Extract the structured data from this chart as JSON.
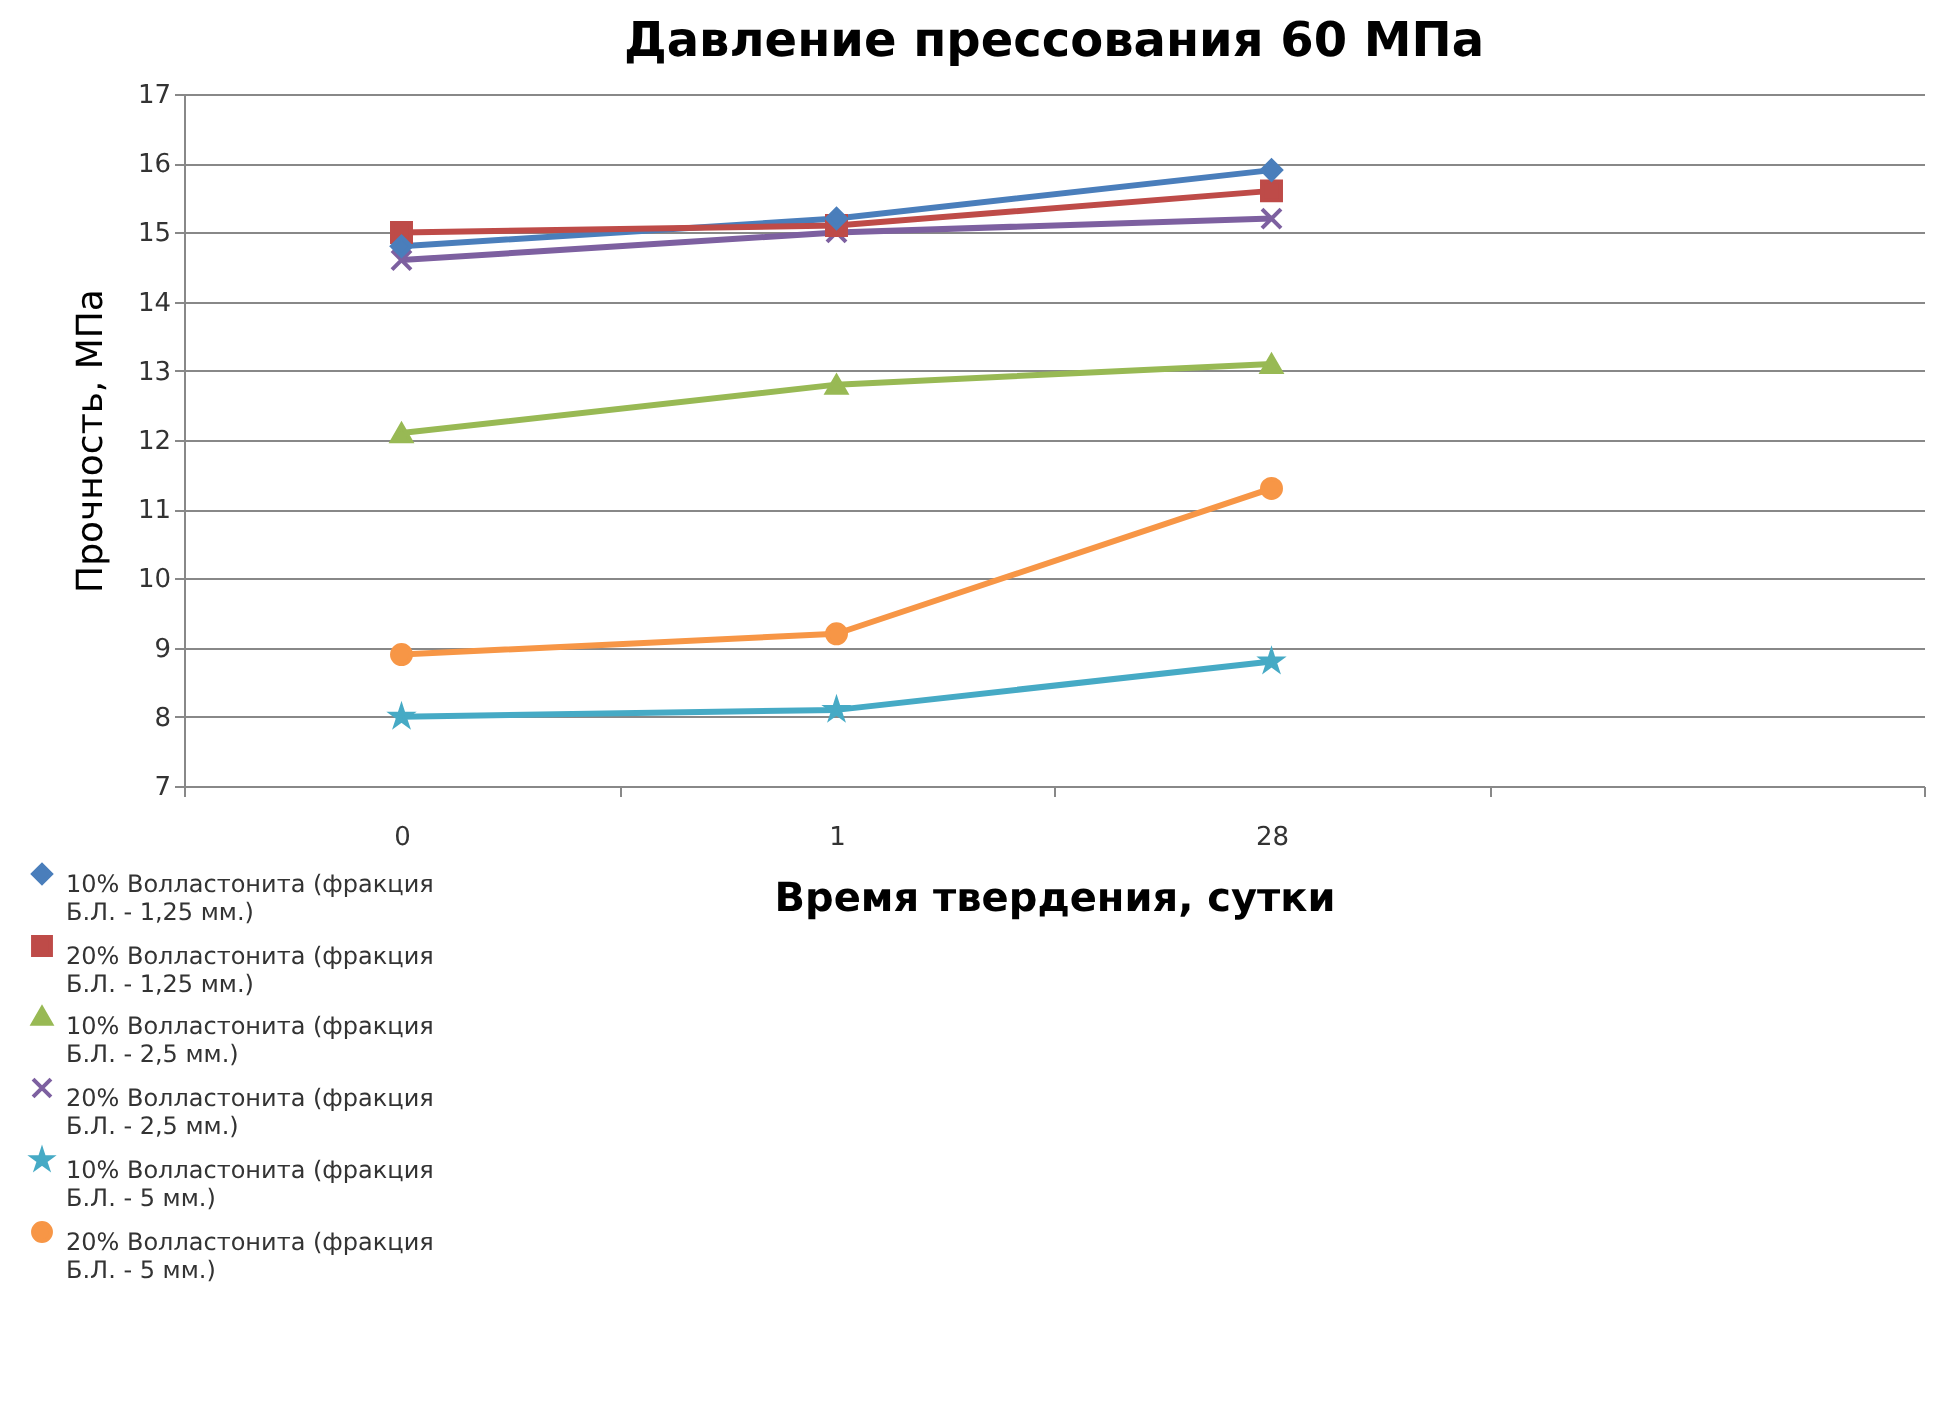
{
  "chart_data": {
    "type": "line",
    "title": "Давление прессования 60 МПа",
    "xlabel": "Время твердения, сутки",
    "ylabel": "Прочность, МПа",
    "categories": [
      "0",
      "1",
      "28",
      null
    ],
    "series": [
      {
        "name": "10% Волластонита (фракция Б.Л. - 1,25 мм.)",
        "color": "#4a7ebb",
        "marker": "diamond",
        "values": [
          14.8,
          15.2,
          15.9,
          null
        ]
      },
      {
        "name": "20% Волластонита  (фракция Б.Л. - 1,25 мм.)",
        "color": "#be4b48",
        "marker": "square",
        "values": [
          15.0,
          15.1,
          15.6,
          null
        ]
      },
      {
        "name": "10% Волластонита (фракция Б.Л. - 2,5 мм.)",
        "color": "#98b954",
        "marker": "triangle",
        "values": [
          12.1,
          12.8,
          13.1,
          null
        ]
      },
      {
        "name": "20% Волластонита (фракция Б.Л. - 2,5 мм.)",
        "color": "#7d60a0",
        "marker": "cross",
        "values": [
          14.6,
          15.0,
          15.2,
          null
        ]
      },
      {
        "name": "10% Волластонита (фракция Б.Л. - 5 мм.)",
        "color": "#46aac5",
        "marker": "star",
        "values": [
          8.0,
          8.1,
          8.8,
          null
        ]
      },
      {
        "name": "20% Волластонита (фракция Б.Л. - 5 мм.)",
        "color": "#f79646",
        "marker": "circle",
        "values": [
          8.9,
          9.2,
          11.3,
          null
        ]
      }
    ],
    "ylim": [
      7,
      17
    ],
    "yticks": [
      7,
      8,
      9,
      10,
      11,
      12,
      13,
      14,
      15,
      16,
      17
    ],
    "grid": "y",
    "legend": "bottom left"
  }
}
